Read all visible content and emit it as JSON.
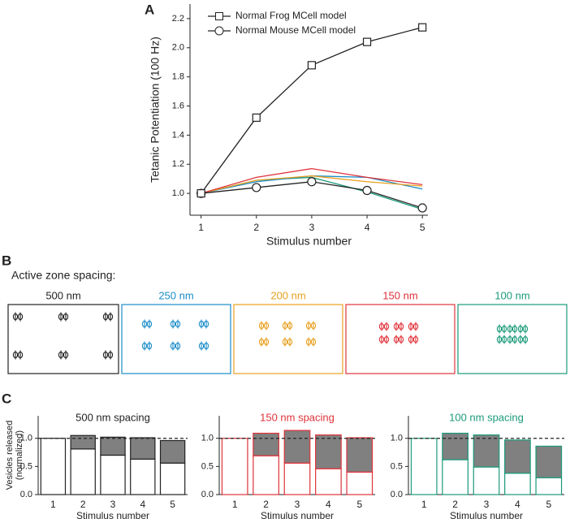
{
  "panel_labels": [
    "A",
    "B",
    "C"
  ],
  "chart_data": [
    {
      "type": "line",
      "ylabel": "Tetanic Potentiation (100 Hz)",
      "xlabel": "Stimulus number",
      "x": [
        1,
        2,
        3,
        4,
        5
      ],
      "xlim": [
        0.8,
        5.1
      ],
      "xticks": [
        1,
        2,
        3,
        4,
        5
      ],
      "ylim": [
        0.85,
        2.3
      ],
      "yticks": [
        {
          "value": 1.0,
          "label": "1.0"
        },
        {
          "value": 1.2,
          "label": "1.2"
        },
        {
          "value": 1.4,
          "label": "1.4"
        },
        {
          "value": 1.6,
          "label": "1.6"
        },
        {
          "value": 1.8,
          "label": "1.8"
        },
        {
          "value": 2.0,
          "label": "2.0"
        },
        {
          "value": 2.2,
          "label": "2.2"
        }
      ],
      "series": [
        {
          "name": "Normal Frog MCell model",
          "color": "#222222",
          "marker": "square",
          "values": [
            1.0,
            1.52,
            1.88,
            2.04,
            2.14
          ]
        },
        {
          "name": "Normal Mouse MCell model",
          "color": "#222222",
          "marker": "circle",
          "values": [
            1.0,
            1.04,
            1.08,
            1.02,
            0.9
          ]
        },
        {
          "color": "#e0323a",
          "values": [
            1.0,
            1.11,
            1.17,
            1.11,
            1.06
          ]
        },
        {
          "color": "#e8a020",
          "values": [
            1.0,
            1.09,
            1.12,
            1.08,
            1.05
          ]
        },
        {
          "color": "#1a8cc8",
          "values": [
            1.0,
            1.08,
            1.12,
            1.11,
            1.03
          ]
        },
        {
          "color": "#1a9a7a",
          "values": [
            1.0,
            1.09,
            1.11,
            1.01,
            0.89
          ]
        }
      ]
    },
    {
      "type": "bar",
      "title": "500 nm spacing",
      "title_color": "#222222",
      "ylabel": [
        "Vesicles released",
        "(normalized)"
      ],
      "xlabel": "Stimulus number",
      "categories": [
        "1",
        "2",
        "3",
        "4",
        "5"
      ],
      "ylim": [
        0,
        1.4
      ],
      "yticks": [
        {
          "value": 0,
          "label": "0.0"
        },
        {
          "value": 0.5,
          "label": "0.5"
        },
        {
          "value": 1,
          "label": "1.0"
        }
      ],
      "reference_line": 1,
      "edge_color": "#222222",
      "series": [
        {
          "color": "#ffffff",
          "values": [
            1.0,
            0.81,
            0.7,
            0.63,
            0.56
          ]
        },
        {
          "color": "#808080",
          "values": [
            null,
            0.24,
            0.32,
            0.38,
            0.4
          ]
        }
      ]
    },
    {
      "type": "bar",
      "title": "150 nm spacing",
      "title_color": "#e0323a",
      "xlabel": "Stimulus number",
      "categories": [
        "1",
        "2",
        "3",
        "4",
        "5"
      ],
      "ylim": [
        0,
        1.4
      ],
      "yticks": [
        {
          "value": 0,
          "label": "0.0"
        },
        {
          "value": 0.5,
          "label": "0.5"
        },
        {
          "value": 1,
          "label": "1.0"
        }
      ],
      "reference_line": 1,
      "edge_color": "#e0323a",
      "series": [
        {
          "color": "#ffffff",
          "values": [
            1.0,
            0.69,
            0.56,
            0.46,
            0.4
          ]
        },
        {
          "color": "#808080",
          "values": [
            null,
            0.4,
            0.58,
            0.6,
            0.61
          ]
        }
      ]
    },
    {
      "type": "bar",
      "title": "100 nm spacing",
      "title_color": "#1a9a7a",
      "xlabel": "Stimulus number",
      "categories": [
        "1",
        "2",
        "3",
        "4",
        "5"
      ],
      "ylim": [
        0,
        1.4
      ],
      "yticks": [
        {
          "value": 0,
          "label": "0.0"
        },
        {
          "value": 0.5,
          "label": "0.5"
        },
        {
          "value": 1,
          "label": "1.0"
        }
      ],
      "reference_line": 1,
      "edge_color": "#1a9a7a",
      "series": [
        {
          "color": "#ffffff",
          "values": [
            1.0,
            0.62,
            0.49,
            0.38,
            0.3
          ]
        },
        {
          "color": "#808080",
          "values": [
            null,
            0.47,
            0.57,
            0.59,
            0.56
          ]
        }
      ]
    }
  ],
  "spacing_diagram": {
    "title": "Active zone spacing:",
    "boxes": [
      {
        "label": "500 nm",
        "color": "#222222"
      },
      {
        "label": "250 nm",
        "color": "#1a8cc8"
      },
      {
        "label": "200 nm",
        "color": "#e8a020"
      },
      {
        "label": "150 nm",
        "color": "#e0323a"
      },
      {
        "label": "100 nm",
        "color": "#1a9a7a"
      }
    ]
  }
}
